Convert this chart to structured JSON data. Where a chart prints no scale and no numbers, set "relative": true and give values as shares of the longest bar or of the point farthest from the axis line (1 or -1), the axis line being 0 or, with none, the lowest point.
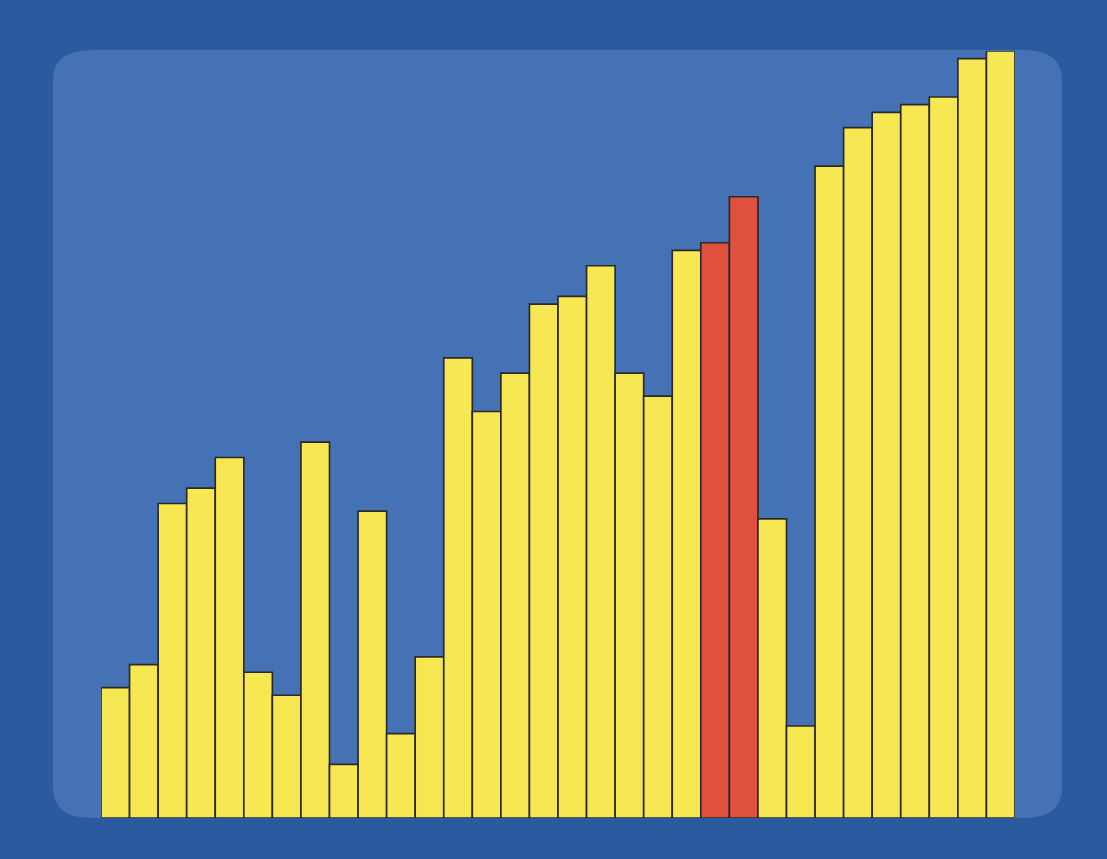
{
  "chart_data": {
    "type": "bar",
    "relative": true,
    "categories": [
      null,
      null,
      null,
      null,
      null,
      null,
      null,
      null,
      null,
      null,
      null,
      null,
      null,
      null,
      null,
      null,
      null,
      null,
      null,
      null,
      null,
      null,
      null,
      null,
      null,
      null,
      null,
      null,
      null,
      null,
      null,
      null
    ],
    "values": [
      0.17,
      0.2,
      0.41,
      0.43,
      0.47,
      0.19,
      0.16,
      0.49,
      0.07,
      0.4,
      0.11,
      0.21,
      0.6,
      0.53,
      0.58,
      0.67,
      0.68,
      0.72,
      0.58,
      0.55,
      0.74,
      0.75,
      0.81,
      0.39,
      0.12,
      0.85,
      0.9,
      0.92,
      0.93,
      0.94,
      0.99,
      1
    ],
    "colors": [
      "#f7e853",
      "#f7e853",
      "#f7e853",
      "#f7e853",
      "#f7e853",
      "#f7e853",
      "#f7e853",
      "#f7e853",
      "#f7e853",
      "#f7e853",
      "#f7e853",
      "#f7e853",
      "#f7e853",
      "#f7e853",
      "#f7e853",
      "#f7e853",
      "#f7e853",
      "#f7e853",
      "#f7e853",
      "#f7e853",
      "#f7e853",
      "#e0503e",
      "#e0503e",
      "#f7e853",
      "#f7e853",
      "#f7e853",
      "#f7e853",
      "#f7e853",
      "#f7e853",
      "#f7e853",
      "#f7e853",
      "#f7e853"
    ]
  }
}
